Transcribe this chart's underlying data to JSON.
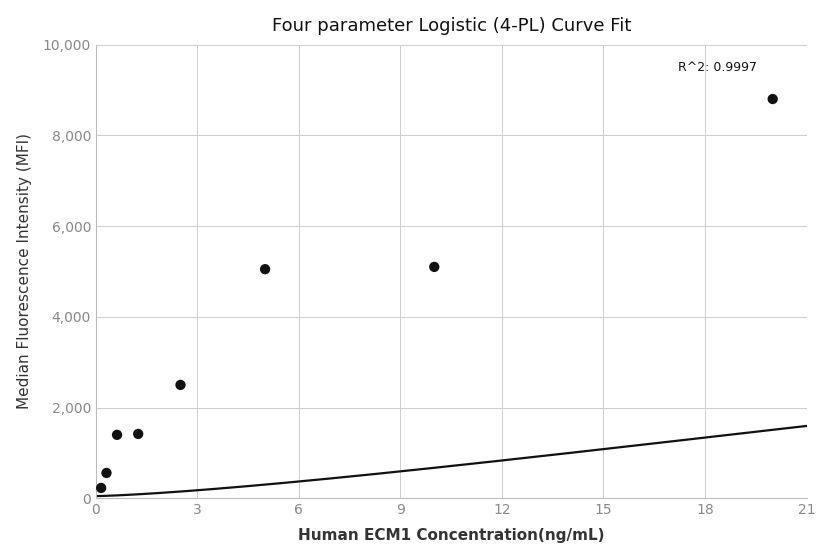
{
  "title": "Four parameter Logistic (4-PL) Curve Fit",
  "xlabel": "Human ECM1 Concentration(ng/mL)",
  "ylabel": "Median Fluorescence Intensity (MFI)",
  "data_points_x": [
    0.156,
    0.313,
    0.625,
    1.25,
    2.5,
    5.0,
    10.0,
    20.0
  ],
  "data_points_y": [
    230,
    560,
    1400,
    1420,
    2500,
    5050,
    5100,
    8800
  ],
  "r_squared": "R^2: 0.9997",
  "r2_x": 17.2,
  "r2_y": 9350,
  "xlim": [
    0,
    21
  ],
  "ylim": [
    0,
    10000
  ],
  "xticks": [
    0,
    3,
    6,
    9,
    12,
    15,
    18,
    21
  ],
  "yticks": [
    0,
    2000,
    4000,
    6000,
    8000,
    10000
  ],
  "background_color": "#ffffff",
  "grid_color": "#cccccc",
  "line_color": "#111111",
  "dot_color": "#111111",
  "title_fontsize": 13,
  "label_fontsize": 11,
  "tick_fontsize": 10,
  "annotation_fontsize": 9,
  "dot_size": 55,
  "line_width": 1.6,
  "4pl_a": 50,
  "4pl_b": 1.35,
  "4pl_c": 80,
  "4pl_d": 11000
}
